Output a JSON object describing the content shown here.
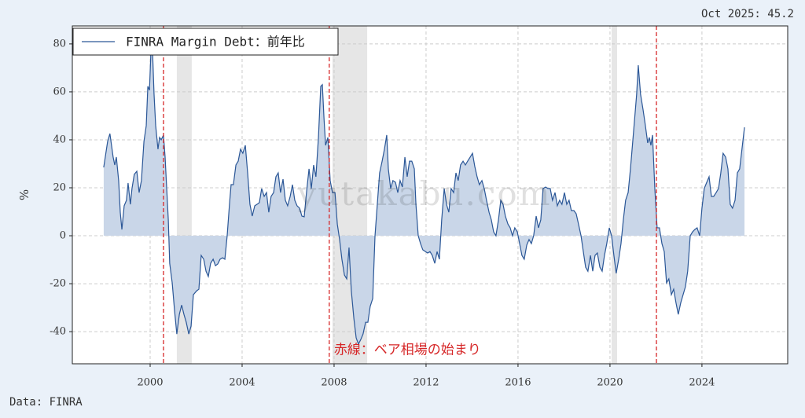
{
  "chart_data": {
    "type": "area",
    "title": "Oct 2025: 45.2",
    "source": "Data: FINRA",
    "ylabel": "%",
    "watermark": "yutakabu.com",
    "annotation": "赤線：ベア相場の始まり",
    "xlim": [
      1996.615,
      2027.73
    ],
    "ylim": [
      -53.4,
      87.5
    ],
    "xticks": [
      2000,
      2004,
      2008,
      2012,
      2016,
      2020,
      2024
    ],
    "yticks": [
      -40,
      -20,
      0,
      20,
      40,
      60,
      80
    ],
    "grid": true,
    "legend": "upper left",
    "fill_color": "#c9d6e8",
    "shaded_ranges": [
      [
        2001.16,
        2001.81
      ],
      [
        2007.93,
        2009.44
      ],
      [
        2020.07,
        2020.31
      ]
    ],
    "shade_color": "#e6e6e6",
    "vlines": [
      2000.58,
      2007.79,
      2022.02
    ],
    "vline_color": "#d62728",
    "x": [
      1997.98,
      1998.15,
      1998.25,
      1998.39,
      1998.46,
      1998.53,
      1998.63,
      1998.7,
      1998.77,
      1998.87,
      1998.97,
      1999.04,
      1999.14,
      1999.21,
      1999.31,
      1999.42,
      1999.52,
      1999.62,
      1999.73,
      1999.83,
      1999.9,
      1999.97,
      2000.07,
      2000.17,
      2000.24,
      2000.34,
      2000.41,
      2000.48,
      2000.58,
      2000.65,
      2000.72,
      2000.79,
      2000.85,
      2000.96,
      2001.06,
      2001.16,
      2001.27,
      2001.37,
      2001.47,
      2001.57,
      2001.68,
      2001.78,
      2001.88,
      2002.02,
      2002.12,
      2002.22,
      2002.33,
      2002.43,
      2002.53,
      2002.63,
      2002.74,
      2002.84,
      2002.94,
      2003.04,
      2003.15,
      2003.25,
      2003.35,
      2003.45,
      2003.52,
      2003.62,
      2003.73,
      2003.83,
      2003.93,
      2004.03,
      2004.14,
      2004.24,
      2004.34,
      2004.44,
      2004.55,
      2004.65,
      2004.75,
      2004.85,
      2004.96,
      2005.06,
      2005.16,
      2005.26,
      2005.37,
      2005.47,
      2005.57,
      2005.67,
      2005.78,
      2005.88,
      2005.98,
      2006.09,
      2006.19,
      2006.29,
      2006.39,
      2006.5,
      2006.6,
      2006.7,
      2006.8,
      2006.91,
      2007.01,
      2007.11,
      2007.21,
      2007.32,
      2007.42,
      2007.49,
      2007.56,
      2007.63,
      2007.73,
      2007.83,
      2007.93,
      2008.04,
      2008.14,
      2008.24,
      2008.34,
      2008.45,
      2008.55,
      2008.65,
      2008.75,
      2008.86,
      2008.96,
      2009.06,
      2009.16,
      2009.26,
      2009.37,
      2009.47,
      2009.57,
      2009.68,
      2009.78,
      2009.88,
      2009.98,
      2010.09,
      2010.19,
      2010.29,
      2010.36,
      2010.46,
      2010.56,
      2010.67,
      2010.77,
      2010.87,
      2010.97,
      2011.08,
      2011.18,
      2011.28,
      2011.38,
      2011.49,
      2011.56,
      2011.66,
      2011.76,
      2011.86,
      2011.97,
      2012.07,
      2012.17,
      2012.27,
      2012.38,
      2012.48,
      2012.58,
      2012.68,
      2012.79,
      2012.89,
      2012.99,
      2013.09,
      2013.2,
      2013.3,
      2013.4,
      2013.5,
      2013.61,
      2013.71,
      2013.81,
      2013.92,
      2014.02,
      2014.12,
      2014.22,
      2014.32,
      2014.43,
      2014.53,
      2014.63,
      2014.74,
      2014.84,
      2014.94,
      2015.04,
      2015.15,
      2015.25,
      2015.35,
      2015.45,
      2015.56,
      2015.66,
      2015.76,
      2015.86,
      2015.97,
      2016.07,
      2016.17,
      2016.27,
      2016.38,
      2016.48,
      2016.58,
      2016.68,
      2016.79,
      2016.89,
      2016.99,
      2017.09,
      2017.2,
      2017.3,
      2017.4,
      2017.5,
      2017.61,
      2017.71,
      2017.81,
      2017.91,
      2018.02,
      2018.12,
      2018.22,
      2018.32,
      2018.43,
      2018.53,
      2018.63,
      2018.74,
      2018.84,
      2018.94,
      2019.04,
      2019.15,
      2019.25,
      2019.35,
      2019.45,
      2019.56,
      2019.66,
      2019.76,
      2019.86,
      2019.97,
      2020.07,
      2020.17,
      2020.27,
      2020.38,
      2020.48,
      2020.58,
      2020.68,
      2020.79,
      2020.89,
      2020.99,
      2021.09,
      2021.16,
      2021.23,
      2021.33,
      2021.44,
      2021.54,
      2021.64,
      2021.71,
      2021.78,
      2021.85,
      2021.95,
      2022.05,
      2022.15,
      2022.26,
      2022.36,
      2022.46,
      2022.56,
      2022.67,
      2022.77,
      2022.87,
      2022.97,
      2023.08,
      2023.18,
      2023.28,
      2023.38,
      2023.49,
      2023.59,
      2023.69,
      2023.79,
      2023.9,
      2024.0,
      2024.1,
      2024.21,
      2024.31,
      2024.41,
      2024.51,
      2024.62,
      2024.72,
      2024.82,
      2024.92,
      2025.03,
      2025.13,
      2025.23,
      2025.33,
      2025.44,
      2025.54,
      2025.64,
      2025.74,
      2025.85
    ],
    "series": [
      {
        "name": "FINRA Margin Debt：前年比",
        "color": "#2b5797",
        "values": [
          28.5,
          39.3,
          42.6,
          32.8,
          29.5,
          32.8,
          23.0,
          9.8,
          2.6,
          12.5,
          14.8,
          22.0,
          13.1,
          19.7,
          25.6,
          26.9,
          18.0,
          23.0,
          39.3,
          45.9,
          62.3,
          60.7,
          86,
          59.0,
          45.9,
          36.1,
          41.0,
          40.0,
          42.0,
          32.8,
          19.7,
          6.6,
          -11.5,
          -19.7,
          -31.1,
          -41.0,
          -32.8,
          -28.9,
          -32.8,
          -36.1,
          -41.0,
          -37.7,
          -24.6,
          -23.0,
          -22.3,
          -8.2,
          -9.8,
          -14.8,
          -17.0,
          -11.5,
          -9.8,
          -12.5,
          -11.8,
          -9.8,
          -9.2,
          -9.8,
          0,
          13.1,
          21.3,
          21.3,
          29.5,
          31.1,
          36.1,
          34.4,
          37.7,
          26.2,
          13.1,
          8.2,
          12.5,
          13.1,
          13.8,
          19.7,
          16.4,
          18.0,
          9.8,
          16.4,
          18.0,
          24.6,
          26.2,
          18.0,
          23.6,
          14.8,
          12.5,
          16.4,
          21.3,
          14.8,
          12.5,
          11.5,
          8.2,
          7.9,
          18.0,
          27.9,
          19.7,
          29.5,
          24.6,
          41.0,
          62.3,
          63.0,
          49.2,
          37.7,
          41.0,
          23.0,
          18.0,
          18.0,
          4.9,
          -1.6,
          -9.8,
          -16.4,
          -18.0,
          -4.9,
          -23.0,
          -34.4,
          -42.6,
          -45.2,
          -43.3,
          -41.0,
          -36.1,
          -36.1,
          -29.5,
          -26.2,
          0,
          13.1,
          26.2,
          31.1,
          36.1,
          42.0,
          27.9,
          19.7,
          23.0,
          22.3,
          18.0,
          23.0,
          20.3,
          32.8,
          24.6,
          31.1,
          31.1,
          27.9,
          13.1,
          0,
          -3.3,
          -5.9,
          -6.6,
          -7.2,
          -6.6,
          -8.2,
          -11.5,
          -6.6,
          -9.8,
          6.6,
          19.7,
          13.1,
          9.8,
          19.7,
          18.0,
          26.2,
          23.0,
          29.5,
          31.1,
          29.5,
          31.1,
          32.8,
          34.4,
          28.9,
          24.6,
          21.3,
          23.0,
          19.7,
          14.8,
          9.8,
          6.6,
          1.6,
          0,
          6.6,
          14.8,
          13.1,
          8.2,
          4.9,
          3.3,
          0,
          3.3,
          1.6,
          -3.3,
          -8.2,
          -9.8,
          -3.9,
          -1.6,
          -3.3,
          0,
          8.2,
          3.3,
          6.6,
          19.7,
          20.3,
          19.7,
          19.7,
          14.8,
          18.0,
          12.5,
          14.8,
          13.1,
          18.0,
          13.1,
          14.8,
          10.5,
          10.5,
          9.2,
          4.9,
          0,
          -6.6,
          -13.1,
          -14.8,
          -8.2,
          -14.8,
          -8.2,
          -7.2,
          -13.1,
          -14.8,
          -8.2,
          -3.3,
          3.3,
          0,
          -8.2,
          -15.7,
          -9.8,
          -3.3,
          6.6,
          14.8,
          18.0,
          27.9,
          39.3,
          50.8,
          59.0,
          71.1,
          59.0,
          52.5,
          45.9,
          38.7,
          41.0,
          37.7,
          42.0,
          19.7,
          3.3,
          3.3,
          -3.3,
          -6.6,
          -19.7,
          -18.0,
          -24.6,
          -22.3,
          -27.9,
          -32.8,
          -27.9,
          -24.6,
          -21.3,
          -14.8,
          0,
          1.6,
          2.6,
          3.3,
          0,
          11.5,
          19.7,
          22.3,
          24.6,
          16.4,
          16.4,
          18.0,
          19.7,
          26.2,
          34.4,
          32.8,
          27.9,
          13.1,
          11.5,
          14.8,
          26.2,
          27.9,
          36.1,
          45.2
        ]
      }
    ]
  }
}
